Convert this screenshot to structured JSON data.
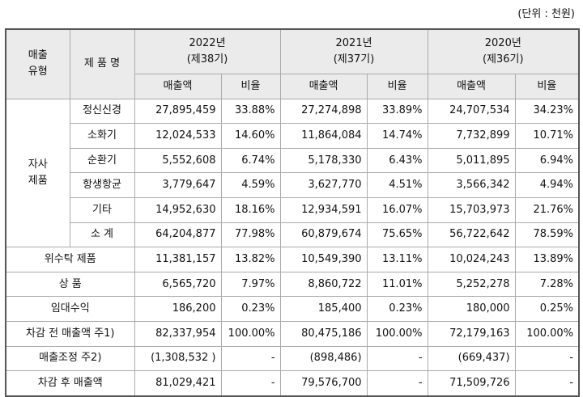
{
  "unit": "(단위 : 천원)",
  "table": {
    "header": {
      "type": "매출\n유형",
      "product": "제 품 명",
      "periods": [
        {
          "year": "2022년",
          "term": "(제38기)"
        },
        {
          "year": "2021년",
          "term": "(제37기)"
        },
        {
          "year": "2020년",
          "term": "(제36기)"
        }
      ],
      "sales": "매출액",
      "ratio": "비율"
    },
    "group": {
      "label": "자사\n제품",
      "rows": [
        {
          "name": "정신신경",
          "cells": [
            "27,895,459",
            "33.88%",
            "27,274,898",
            "33.89%",
            "24,707,534",
            "34.23%"
          ]
        },
        {
          "name": "소화기",
          "cells": [
            "12,024,533",
            "14.60%",
            "11,864,084",
            "14.74%",
            "7,732,899",
            "10.71%"
          ]
        },
        {
          "name": "순환기",
          "cells": [
            "5,552,608",
            "6.74%",
            "5,178,330",
            "6.43%",
            "5,011,895",
            "6.94%"
          ]
        },
        {
          "name": "항생항균",
          "cells": [
            "3,779,647",
            "4.59%",
            "3,627,770",
            "4.51%",
            "3,566,342",
            "4.94%"
          ]
        },
        {
          "name": "기타",
          "cells": [
            "14,952,630",
            "18.16%",
            "12,934,591",
            "16.07%",
            "15,703,973",
            "21.76%"
          ]
        },
        {
          "name": "소 계",
          "cells": [
            "64,204,877",
            "77.98%",
            "60,879,674",
            "75.65%",
            "56,722,642",
            "78.59%"
          ]
        }
      ]
    },
    "rows": [
      {
        "name": "위수탁 제품",
        "cells": [
          "11,381,157",
          "13.82%",
          "10,549,390",
          "13.11%",
          "10,024,243",
          "13.89%"
        ]
      },
      {
        "name": "상 품",
        "cells": [
          "6,565,720",
          "7.97%",
          "8,860,722",
          "11.01%",
          "5,252,278",
          "7.28%"
        ]
      },
      {
        "name": "임대수익",
        "cells": [
          "186,200",
          "0.23%",
          "185,400",
          "0.23%",
          "180,000",
          "0.25%"
        ]
      },
      {
        "name": "차감 전 매출액 주1)",
        "cells": [
          "82,337,954",
          "100.00%",
          "80,475,186",
          "100.00%",
          "72,179,163",
          "100.00%"
        ]
      },
      {
        "name": "매출조정 주2)",
        "cells": [
          "(1,308,532 )",
          "-",
          "(898,486)",
          "-",
          "(669,437)",
          "-"
        ]
      },
      {
        "name": "차감 후 매출액",
        "cells": [
          "81,029,421",
          "-",
          "79,576,700",
          "-",
          "71,509,726",
          "-"
        ]
      }
    ]
  }
}
